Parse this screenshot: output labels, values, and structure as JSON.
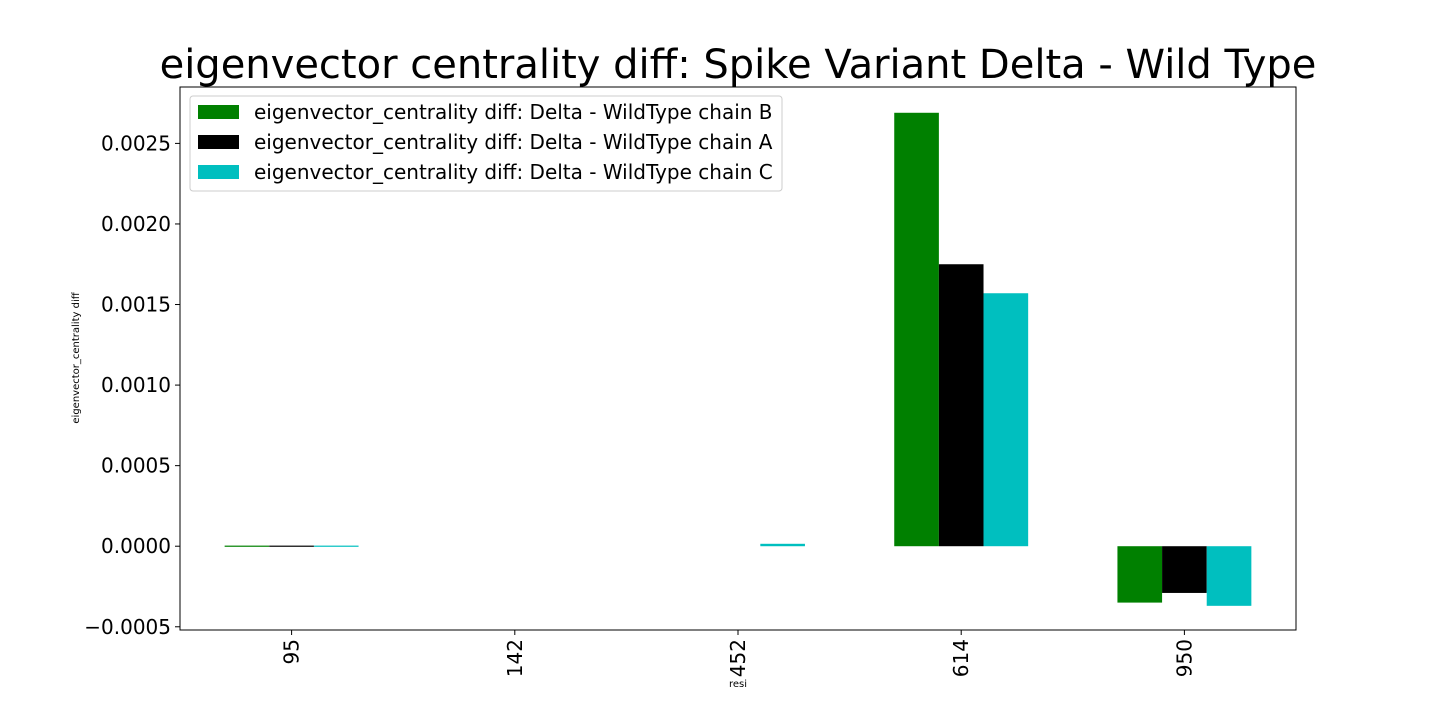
{
  "chart_data": {
    "type": "bar",
    "title": "eigenvector centrality diff: Spike Variant Delta - Wild Type",
    "xlabel": "resi",
    "ylabel": "eigenvector_centrality diff",
    "categories": [
      "95",
      "142",
      "452",
      "614",
      "950"
    ],
    "series": [
      {
        "name": "eigenvector_centrality diff: Delta - WildType chain B",
        "color": "#008000",
        "values": [
          -3e-06,
          0.0,
          0.0,
          0.00269,
          -0.00035
        ]
      },
      {
        "name": "eigenvector_centrality diff: Delta - WildType chain A",
        "color": "#000000",
        "values": [
          -3e-06,
          0.0,
          0.0,
          0.00175,
          -0.00029
        ]
      },
      {
        "name": "eigenvector_centrality diff: Delta - WildType chain C",
        "color": "#00bfbf",
        "values": [
          -3e-06,
          0.0,
          1.5e-05,
          0.00157,
          -0.00037
        ]
      }
    ],
    "ylim": [
      -0.00052,
      0.00285
    ],
    "yticks": [
      -0.0005,
      0.0,
      0.0005,
      0.001,
      0.0015,
      0.002,
      0.0025
    ],
    "ytick_labels": [
      "−0.0005",
      "0.0000",
      "0.0005",
      "0.0010",
      "0.0015",
      "0.0020",
      "0.0025"
    ],
    "legend_position": "top-left",
    "grid": false
  }
}
